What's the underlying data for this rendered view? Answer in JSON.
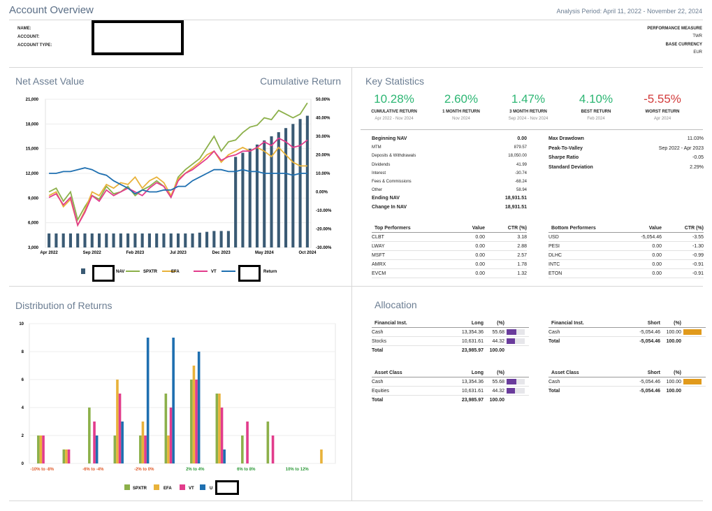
{
  "header": {
    "title": "Account Overview",
    "period": "Analysis Period: April 11, 2022 - November 22, 2024",
    "fields": [
      "NAME:",
      "ACCOUNT:",
      "ACCOUNT TYPE:"
    ],
    "perf_label": "PERFORMANCE MEASURE",
    "perf_value": "TWR",
    "currency_label": "BASE CURRENCY",
    "currency_value": "EUR"
  },
  "nav_chart": {
    "title_left": "Net Asset Value",
    "title_right": "Cumulative Return",
    "chart_data": {
      "type": "bar",
      "title": "Net Asset Value / Cumulative Return",
      "left_ticks": [
        "21,000",
        "18,000",
        "15,000",
        "12,000",
        "9,000",
        "6,000",
        "3,000"
      ],
      "left_range": [
        3000,
        21000
      ],
      "right_ticks": [
        "50.00%",
        "40.00%",
        "30.00%",
        "20.00%",
        "10.00%",
        "0.00%",
        "-10.00%",
        "-20.00%",
        "-30.00%"
      ],
      "right_range": [
        -30,
        50
      ],
      "x_labels": [
        "Apr 2022",
        "Sep 2022",
        "Feb 2023",
        "Jul 2023",
        "Dec 2023",
        "May 2024",
        "Oct 2024"
      ],
      "nav_values": [
        4700,
        4700,
        4700,
        4700,
        4700,
        4700,
        4700,
        4700,
        4700,
        4700,
        4700,
        4700,
        4700,
        4700,
        4700,
        4700,
        4700,
        4700,
        4700,
        4700,
        4700,
        4800,
        4900,
        5000,
        5000,
        5000,
        14000,
        14500,
        15000,
        15500,
        16000,
        16500,
        17000,
        17500,
        18000,
        18600,
        19000
      ],
      "series": [
        {
          "name": "SPXTR",
          "color": "#8cb04a",
          "values": [
            0,
            2,
            -5,
            0,
            -15,
            -8,
            -2,
            -4,
            3,
            -1,
            0,
            3,
            -2,
            1,
            3,
            6,
            3,
            -3,
            8,
            12,
            15,
            18,
            24,
            30,
            22,
            27,
            28,
            32,
            35,
            36,
            40,
            39,
            44,
            42,
            40,
            42,
            48
          ]
        },
        {
          "name": "EFA",
          "color": "#e8b23a",
          "values": [
            -2,
            0,
            -8,
            -4,
            -18,
            -10,
            0,
            -2,
            4,
            2,
            5,
            4,
            8,
            2,
            6,
            8,
            5,
            -2,
            7,
            10,
            13,
            16,
            20,
            22,
            16,
            20,
            22,
            24,
            22,
            24,
            22,
            19,
            24,
            20,
            16,
            14,
            14
          ]
        },
        {
          "name": "VT",
          "color": "#e23c8c",
          "values": [
            -3,
            -1,
            -7,
            -3,
            -18,
            -11,
            -2,
            -5,
            1,
            -2,
            0,
            2,
            0,
            -2,
            2,
            5,
            3,
            -3,
            6,
            10,
            12,
            15,
            18,
            22,
            17,
            19,
            20,
            22,
            22,
            24,
            27,
            25,
            29,
            27,
            24,
            25,
            28
          ]
        },
        {
          "name": "Return",
          "color": "#1e6fb0",
          "values": [
            10,
            10,
            11,
            11,
            12,
            13,
            12,
            10,
            9,
            6,
            4,
            2,
            -1,
            1,
            0,
            0,
            1,
            1,
            3,
            3,
            6,
            8,
            10,
            12,
            12,
            11,
            11,
            12,
            11,
            11,
            10,
            10,
            10,
            10,
            9,
            10,
            10
          ]
        }
      ],
      "legend": [
        "NAV",
        "SPXTR",
        "EFA",
        "VT",
        "Return"
      ]
    }
  },
  "key_stats": {
    "title": "Key Statistics",
    "cards": [
      {
        "value": "10.28%",
        "label": "CUMULATIVE RETURN",
        "period": "Apr 2022 - Nov 2024",
        "color": "#2cb673"
      },
      {
        "value": "2.60%",
        "label": "1 MONTH RETURN",
        "period": "Nov 2024",
        "color": "#2cb673"
      },
      {
        "value": "1.47%",
        "label": "3 MONTH RETURN",
        "period": "Sep 2024 - Nov 2024",
        "color": "#2cb673"
      },
      {
        "value": "4.10%",
        "label": "BEST RETURN",
        "period": "Feb 2024",
        "color": "#2cb673"
      },
      {
        "value": "-5.55%",
        "label": "WORST RETURN",
        "period": "Apr 2024",
        "color": "#d23b3b"
      }
    ],
    "left": [
      {
        "label": "Beginning NAV",
        "value": "0.00",
        "bold": true
      },
      {
        "label": "MTM",
        "value": "879.57",
        "bold": false
      },
      {
        "label": "Deposits & Withdrawals",
        "value": "18,050.00",
        "bold": false
      },
      {
        "label": "Dividends",
        "value": "41.99",
        "bold": false
      },
      {
        "label": "Interest",
        "value": "-30.74",
        "bold": false
      },
      {
        "label": "Fees & Commissions",
        "value": "-68.24",
        "bold": false
      },
      {
        "label": "Other",
        "value": "58.94",
        "bold": false
      },
      {
        "label": "Ending NAV",
        "value": "18,931.51",
        "bold": true
      },
      {
        "label": "Change In NAV",
        "value": "18,931.51",
        "bold": true
      }
    ],
    "right": [
      {
        "label": "Max Drawdown",
        "value": "11.03%"
      },
      {
        "label": "Peak-To-Valley",
        "value": "Sep 2022 - Apr 2023"
      },
      {
        "label": "Sharpe Ratio",
        "value": "-0.05"
      },
      {
        "label": "Standard Deviation",
        "value": "2.29%"
      }
    ]
  },
  "top_performers": {
    "headers": [
      "Top Performers",
      "Value",
      "CTR (%)"
    ],
    "rows": [
      [
        "CLBT",
        "0.00",
        "3.18"
      ],
      [
        "LWAY",
        "0.00",
        "2.88"
      ],
      [
        "MSFT",
        "0.00",
        "2.57"
      ],
      [
        "AMRX",
        "0.00",
        "1.78"
      ],
      [
        "EVCM",
        "0.00",
        "1.32"
      ]
    ]
  },
  "bottom_performers": {
    "headers": [
      "Bottom Performers",
      "Value",
      "CTR (%)"
    ],
    "rows": [
      [
        "USD",
        "-5,054.46",
        "-3.55"
      ],
      [
        "PESI",
        "0.00",
        "-1.30"
      ],
      [
        "DLHC",
        "0.00",
        "-0.99"
      ],
      [
        "INTC",
        "0.00",
        "-0.91"
      ],
      [
        "ETON",
        "0.00",
        "-0.91"
      ]
    ]
  },
  "distribution": {
    "title": "Distribution of Returns",
    "chart_data": {
      "type": "bar",
      "title": "Distribution of Returns",
      "ylim": [
        0,
        10
      ],
      "y_ticks": [
        "10",
        "8",
        "6",
        "4",
        "2",
        "0"
      ],
      "categories": [
        "-10% to -8%",
        "-8% to -6%",
        "-6% to -4%",
        "-4% to -2%",
        "-2% to 0%",
        "0% to 2%",
        "2% to 4%",
        "4% to 6%",
        "6% to 8%",
        "8% to 10%",
        "10% to 12%",
        "12% to 14%"
      ],
      "shown_labels": [
        "-10% to -8%",
        "-6% to -4%",
        "-2% to 0%",
        "2% to 4%",
        "6% to 8%",
        "10% to 12%"
      ],
      "series": [
        {
          "name": "SPXTR",
          "color": "#8cb04a",
          "values": [
            2,
            1,
            4,
            2,
            2,
            5,
            6,
            5,
            2,
            3,
            0,
            0
          ]
        },
        {
          "name": "EFA",
          "color": "#e8b23a",
          "values": [
            2,
            1,
            0,
            6,
            3,
            2,
            7,
            5,
            0,
            0,
            0,
            1
          ]
        },
        {
          "name": "VT",
          "color": "#e23c8c",
          "values": [
            2,
            1,
            3,
            5,
            2,
            4,
            6,
            4,
            3,
            2,
            0,
            0
          ]
        },
        {
          "name": "U",
          "color": "#1e6fb0",
          "values": [
            0,
            0,
            2,
            3,
            9,
            9,
            8,
            1,
            0,
            0,
            0,
            0
          ]
        }
      ],
      "legend": [
        "SPXTR",
        "EFA",
        "VT",
        "U"
      ]
    }
  },
  "allocation": {
    "title": "Allocation",
    "long_fin": {
      "headers": [
        "Financial Inst.",
        "Long",
        "(%)"
      ],
      "rows": [
        [
          "Cash",
          "13,354.36",
          "55.68",
          55.68
        ],
        [
          "Stocks",
          "10,631.61",
          "44.32",
          44.32
        ]
      ],
      "total": [
        "Total",
        "23,985.97",
        "100.00"
      ]
    },
    "short_fin": {
      "headers": [
        "Financial Inst.",
        "Short",
        "(%)"
      ],
      "rows": [
        [
          "Cash",
          "-5,054.46",
          "100.00",
          100
        ]
      ],
      "total": [
        "Total",
        "-5,054.46",
        "100.00"
      ]
    },
    "long_asset": {
      "headers": [
        "Asset Class",
        "Long",
        "(%)"
      ],
      "rows": [
        [
          "Cash",
          "13,354.36",
          "55.68",
          55.68
        ],
        [
          "Equities",
          "10,631.61",
          "44.32",
          44.32
        ]
      ],
      "total": [
        "Total",
        "23,985.97",
        "100.00"
      ]
    },
    "short_asset": {
      "headers": [
        "Asset Class",
        "Short",
        "(%)"
      ],
      "rows": [
        [
          "Cash",
          "-5,054.46",
          "100.00",
          100
        ]
      ],
      "total": [
        "Total",
        "-5,054.46",
        "100.00"
      ]
    },
    "colors": {
      "long": "#6a3c9c",
      "short": "#e19a1c"
    }
  }
}
